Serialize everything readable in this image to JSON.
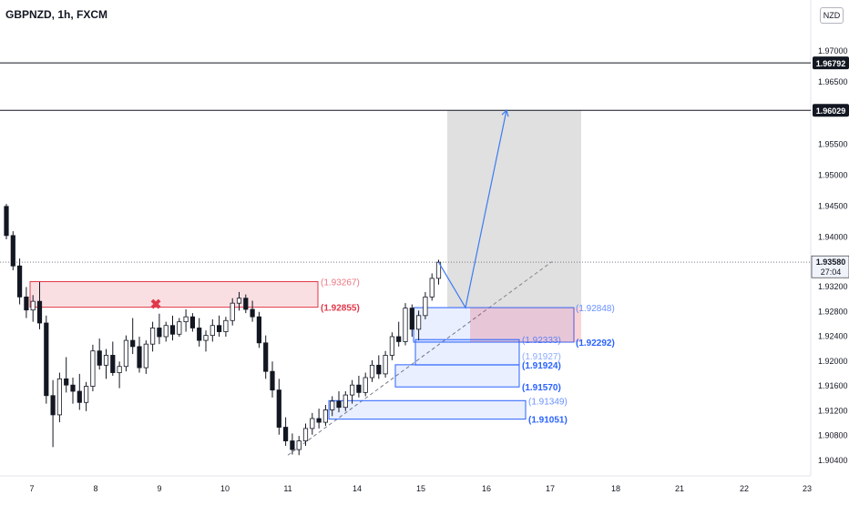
{
  "header": {
    "symbol": "GBPNZD, 1h, FXCM",
    "currency": "NZD"
  },
  "colors": {
    "bull_candle": "#131722",
    "bear_candle": "#131722",
    "red_zone": "#e0394a",
    "blue_zone": "#2962ff",
    "projection": "#3d7bf0",
    "target_box": "#9e9e9e"
  },
  "chart_data": {
    "type": "candlestick",
    "symbol": "GBPNZD",
    "timeframe": "1h",
    "price_axis": {
      "ticks": [
        "1.97000",
        "1.96500",
        "1.95500",
        "1.95000",
        "1.94500",
        "1.94000",
        "1.93200",
        "1.92800",
        "1.92400",
        "1.92000",
        "1.91600",
        "1.91200",
        "1.90800",
        "1.90400"
      ],
      "tick_values": [
        1.97,
        1.965,
        1.955,
        1.95,
        1.945,
        1.94,
        1.932,
        1.928,
        1.924,
        1.92,
        1.916,
        1.912,
        1.908,
        1.904
      ]
    },
    "time_axis": {
      "labels": [
        "7",
        "8",
        "9",
        "10",
        "11",
        "14",
        "15",
        "16",
        "17",
        "18",
        "21",
        "22",
        "23"
      ]
    },
    "current_price": {
      "value": "1.93580",
      "countdown": "27:04"
    },
    "horizontal_lines": [
      {
        "label": "1.96792",
        "value": 1.96792
      },
      {
        "label": "1.96029",
        "value": 1.96029
      }
    ],
    "red_zone": {
      "upper_label": "(1.93267)",
      "lower_label": "(1.92855)",
      "upper": 1.93267,
      "lower": 1.92855,
      "invalidated_marker": "✖"
    },
    "blue_zones": [
      {
        "upper_label": "(1.92848)",
        "lower_label": "(1.92292)",
        "upper": 1.92848,
        "lower": 1.92292,
        "highlighted": true
      },
      {
        "upper_label": "(1.92333)",
        "lower_label": "(1.91924)",
        "overlap_label": "(1.91927)",
        "upper": 1.92333,
        "lower": 1.91924
      },
      {
        "upper_label": "",
        "lower_label": "(1.91570)",
        "upper": 1.91927,
        "lower": 1.9157
      },
      {
        "upper_label": "(1.91349)",
        "lower_label": "(1.91051)",
        "upper": 1.91349,
        "lower": 1.91051
      }
    ],
    "target_box": {
      "top": 1.96029,
      "bottom": 1.92848
    },
    "projection_path": [
      1.9358,
      1.92848,
      1.96029
    ],
    "trendline": {
      "from": 1.9047,
      "to": 1.9359
    },
    "candles": [
      {
        "day": "6",
        "o": 1.9448,
        "h": 1.9452,
        "l": 1.9395,
        "c": 1.9401
      },
      {
        "day": "7",
        "o": 1.9401,
        "h": 1.9408,
        "l": 1.9345,
        "c": 1.9352
      },
      {
        "day": "7",
        "o": 1.9352,
        "h": 1.9364,
        "l": 1.929,
        "c": 1.9302
      },
      {
        "day": "7",
        "o": 1.9302,
        "h": 1.9318,
        "l": 1.9268,
        "c": 1.9281
      },
      {
        "day": "7",
        "o": 1.9281,
        "h": 1.9305,
        "l": 1.9262,
        "c": 1.9295
      },
      {
        "day": "7",
        "o": 1.9295,
        "h": 1.9326,
        "l": 1.925,
        "c": 1.926
      },
      {
        "day": "7",
        "o": 1.926,
        "h": 1.9272,
        "l": 1.913,
        "c": 1.9143
      },
      {
        "day": "7",
        "o": 1.9143,
        "h": 1.9168,
        "l": 1.906,
        "c": 1.9112
      },
      {
        "day": "7",
        "o": 1.9112,
        "h": 1.918,
        "l": 1.91,
        "c": 1.917
      },
      {
        "day": "7",
        "o": 1.917,
        "h": 1.9205,
        "l": 1.9148,
        "c": 1.916
      },
      {
        "day": "7",
        "o": 1.916,
        "h": 1.9172,
        "l": 1.913,
        "c": 1.915
      },
      {
        "day": "7",
        "o": 1.915,
        "h": 1.9178,
        "l": 1.912,
        "c": 1.9132
      },
      {
        "day": "8",
        "o": 1.9132,
        "h": 1.9165,
        "l": 1.9118,
        "c": 1.9158
      },
      {
        "day": "8",
        "o": 1.9158,
        "h": 1.9225,
        "l": 1.915,
        "c": 1.9215
      },
      {
        "day": "8",
        "o": 1.9215,
        "h": 1.9235,
        "l": 1.9185,
        "c": 1.9192
      },
      {
        "day": "8",
        "o": 1.9192,
        "h": 1.9218,
        "l": 1.917,
        "c": 1.9208
      },
      {
        "day": "8",
        "o": 1.9208,
        "h": 1.923,
        "l": 1.9175,
        "c": 1.918
      },
      {
        "day": "8",
        "o": 1.918,
        "h": 1.9198,
        "l": 1.9155,
        "c": 1.919
      },
      {
        "day": "8",
        "o": 1.919,
        "h": 1.924,
        "l": 1.9182,
        "c": 1.9232
      },
      {
        "day": "8",
        "o": 1.9232,
        "h": 1.9268,
        "l": 1.921,
        "c": 1.9222
      },
      {
        "day": "8",
        "o": 1.9222,
        "h": 1.9238,
        "l": 1.918,
        "c": 1.9188
      },
      {
        "day": "8",
        "o": 1.9188,
        "h": 1.9232,
        "l": 1.9178,
        "c": 1.9226
      },
      {
        "day": "8",
        "o": 1.9226,
        "h": 1.9262,
        "l": 1.9214,
        "c": 1.9252
      },
      {
        "day": "8",
        "o": 1.9252,
        "h": 1.9275,
        "l": 1.9226,
        "c": 1.9238
      },
      {
        "day": "9",
        "o": 1.9238,
        "h": 1.9262,
        "l": 1.923,
        "c": 1.9256
      },
      {
        "day": "9",
        "o": 1.9256,
        "h": 1.9272,
        "l": 1.9232,
        "c": 1.9242
      },
      {
        "day": "9",
        "o": 1.9242,
        "h": 1.9268,
        "l": 1.9238,
        "c": 1.9262
      },
      {
        "day": "9",
        "o": 1.9262,
        "h": 1.9282,
        "l": 1.9246,
        "c": 1.927
      },
      {
        "day": "9",
        "o": 1.927,
        "h": 1.9276,
        "l": 1.9246,
        "c": 1.9252
      },
      {
        "day": "9",
        "o": 1.9252,
        "h": 1.9268,
        "l": 1.9222,
        "c": 1.9232
      },
      {
        "day": "9",
        "o": 1.9232,
        "h": 1.9248,
        "l": 1.9214,
        "c": 1.924
      },
      {
        "day": "9",
        "o": 1.924,
        "h": 1.9266,
        "l": 1.923,
        "c": 1.9256
      },
      {
        "day": "9",
        "o": 1.9256,
        "h": 1.9272,
        "l": 1.9238,
        "c": 1.9246
      },
      {
        "day": "9",
        "o": 1.9246,
        "h": 1.927,
        "l": 1.9238,
        "c": 1.9264
      },
      {
        "day": "10",
        "o": 1.9264,
        "h": 1.93,
        "l": 1.9256,
        "c": 1.9292
      },
      {
        "day": "10",
        "o": 1.9292,
        "h": 1.931,
        "l": 1.928,
        "c": 1.93
      },
      {
        "day": "10",
        "o": 1.93,
        "h": 1.9306,
        "l": 1.9276,
        "c": 1.9282
      },
      {
        "day": "10",
        "o": 1.9282,
        "h": 1.9296,
        "l": 1.9262,
        "c": 1.927
      },
      {
        "day": "10",
        "o": 1.927,
        "h": 1.9278,
        "l": 1.922,
        "c": 1.9228
      },
      {
        "day": "10",
        "o": 1.9228,
        "h": 1.924,
        "l": 1.917,
        "c": 1.9182
      },
      {
        "day": "10",
        "o": 1.9182,
        "h": 1.9198,
        "l": 1.914,
        "c": 1.9152
      },
      {
        "day": "10",
        "o": 1.9152,
        "h": 1.917,
        "l": 1.908,
        "c": 1.9092
      },
      {
        "day": "10",
        "o": 1.9092,
        "h": 1.9108,
        "l": 1.9062,
        "c": 1.907
      },
      {
        "day": "10",
        "o": 1.907,
        "h": 1.9082,
        "l": 1.9048,
        "c": 1.9056
      },
      {
        "day": "11",
        "o": 1.9056,
        "h": 1.9078,
        "l": 1.9047,
        "c": 1.907
      },
      {
        "day": "11",
        "o": 1.907,
        "h": 1.9098,
        "l": 1.9062,
        "c": 1.909
      },
      {
        "day": "11",
        "o": 1.909,
        "h": 1.9115,
        "l": 1.908,
        "c": 1.9106
      },
      {
        "day": "11",
        "o": 1.9106,
        "h": 1.9122,
        "l": 1.909,
        "c": 1.91
      },
      {
        "day": "11",
        "o": 1.91,
        "h": 1.9128,
        "l": 1.9094,
        "c": 1.912
      },
      {
        "day": "14",
        "o": 1.912,
        "h": 1.9142,
        "l": 1.911,
        "c": 1.9134
      },
      {
        "day": "14",
        "o": 1.9134,
        "h": 1.915,
        "l": 1.9116,
        "c": 1.9124
      },
      {
        "day": "14",
        "o": 1.9124,
        "h": 1.915,
        "l": 1.9118,
        "c": 1.9144
      },
      {
        "day": "14",
        "o": 1.9144,
        "h": 1.9168,
        "l": 1.913,
        "c": 1.916
      },
      {
        "day": "14",
        "o": 1.916,
        "h": 1.9175,
        "l": 1.914,
        "c": 1.9148
      },
      {
        "day": "14",
        "o": 1.9148,
        "h": 1.918,
        "l": 1.9142,
        "c": 1.9172
      },
      {
        "day": "14",
        "o": 1.9172,
        "h": 1.92,
        "l": 1.9165,
        "c": 1.9192
      },
      {
        "day": "14",
        "o": 1.9192,
        "h": 1.9208,
        "l": 1.917,
        "c": 1.9178
      },
      {
        "day": "14",
        "o": 1.9178,
        "h": 1.9215,
        "l": 1.9172,
        "c": 1.9208
      },
      {
        "day": "15",
        "o": 1.9208,
        "h": 1.9245,
        "l": 1.92,
        "c": 1.9238
      },
      {
        "day": "15",
        "o": 1.9238,
        "h": 1.9262,
        "l": 1.9222,
        "c": 1.923
      },
      {
        "day": "15",
        "o": 1.923,
        "h": 1.9292,
        "l": 1.9224,
        "c": 1.9284
      },
      {
        "day": "15",
        "o": 1.9284,
        "h": 1.929,
        "l": 1.9238,
        "c": 1.925
      },
      {
        "day": "15",
        "o": 1.925,
        "h": 1.928,
        "l": 1.9232,
        "c": 1.9272
      },
      {
        "day": "15",
        "o": 1.9272,
        "h": 1.931,
        "l": 1.9266,
        "c": 1.9302
      },
      {
        "day": "15",
        "o": 1.9302,
        "h": 1.934,
        "l": 1.9296,
        "c": 1.9332
      },
      {
        "day": "15",
        "o": 1.9332,
        "h": 1.9362,
        "l": 1.9322,
        "c": 1.9358
      }
    ]
  }
}
